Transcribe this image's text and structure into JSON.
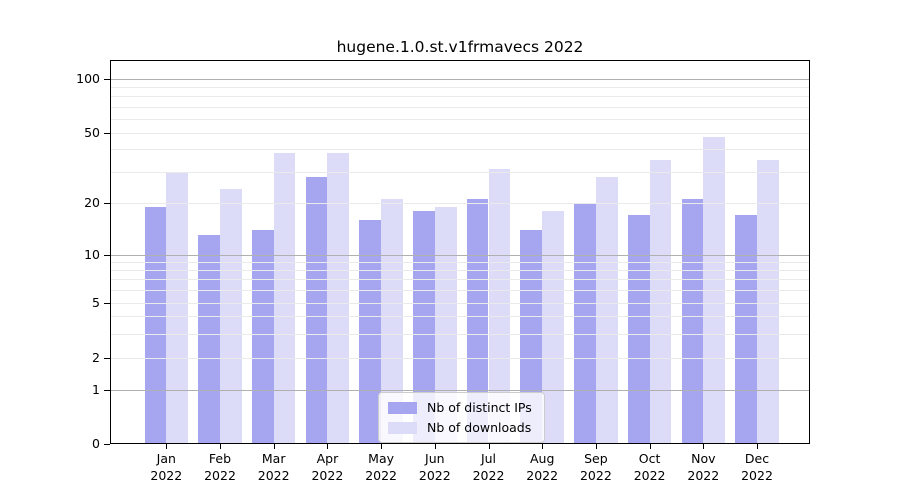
{
  "title": "hugene.1.0.st.v1frmavecs 2022",
  "chart_data": {
    "type": "bar",
    "title": "hugene.1.0.st.v1frmavecs 2022",
    "categories": [
      "Jan",
      "Feb",
      "Mar",
      "Apr",
      "May",
      "Jun",
      "Jul",
      "Aug",
      "Sep",
      "Oct",
      "Nov",
      "Dec"
    ],
    "year_label": "2022",
    "series": [
      {
        "name": "Nb of distinct IPs",
        "color": "#a5a5f0",
        "values": [
          19,
          13,
          14,
          28,
          16,
          18,
          21,
          14,
          20,
          17,
          21,
          17
        ]
      },
      {
        "name": "Nb of downloads",
        "color": "#dcdcf9",
        "values": [
          30,
          24,
          38,
          38,
          21,
          19,
          31,
          18,
          28,
          35,
          47,
          35
        ]
      }
    ],
    "xlabel": "",
    "ylabel": "",
    "yscale": "symlog",
    "y_tick_values": [
      100,
      50,
      20,
      10,
      5,
      2,
      1,
      0
    ],
    "y_tick_labels": [
      "100",
      "50",
      "20",
      "10",
      "5",
      "2",
      "1",
      "0"
    ],
    "y_major_gridlines": [
      1,
      10,
      100
    ],
    "y_minor_gridlines": [
      2,
      3,
      4,
      5,
      6,
      7,
      8,
      9,
      20,
      30,
      40,
      50,
      60,
      70,
      80,
      90
    ],
    "ylim": [
      0,
      130
    ],
    "grid": true,
    "legend_position": "lower center"
  },
  "legend": {
    "items": [
      {
        "label": "Nb of distinct IPs",
        "color": "#a5a5f0"
      },
      {
        "label": "Nb of downloads",
        "color": "#dcdcf9"
      }
    ]
  },
  "colors": {
    "distinct_ips": "#a5a5f0",
    "downloads": "#dcdcf9",
    "grid_minor": "#eaeaea",
    "grid_major": "#b0b0b0",
    "spine": "#000000"
  }
}
